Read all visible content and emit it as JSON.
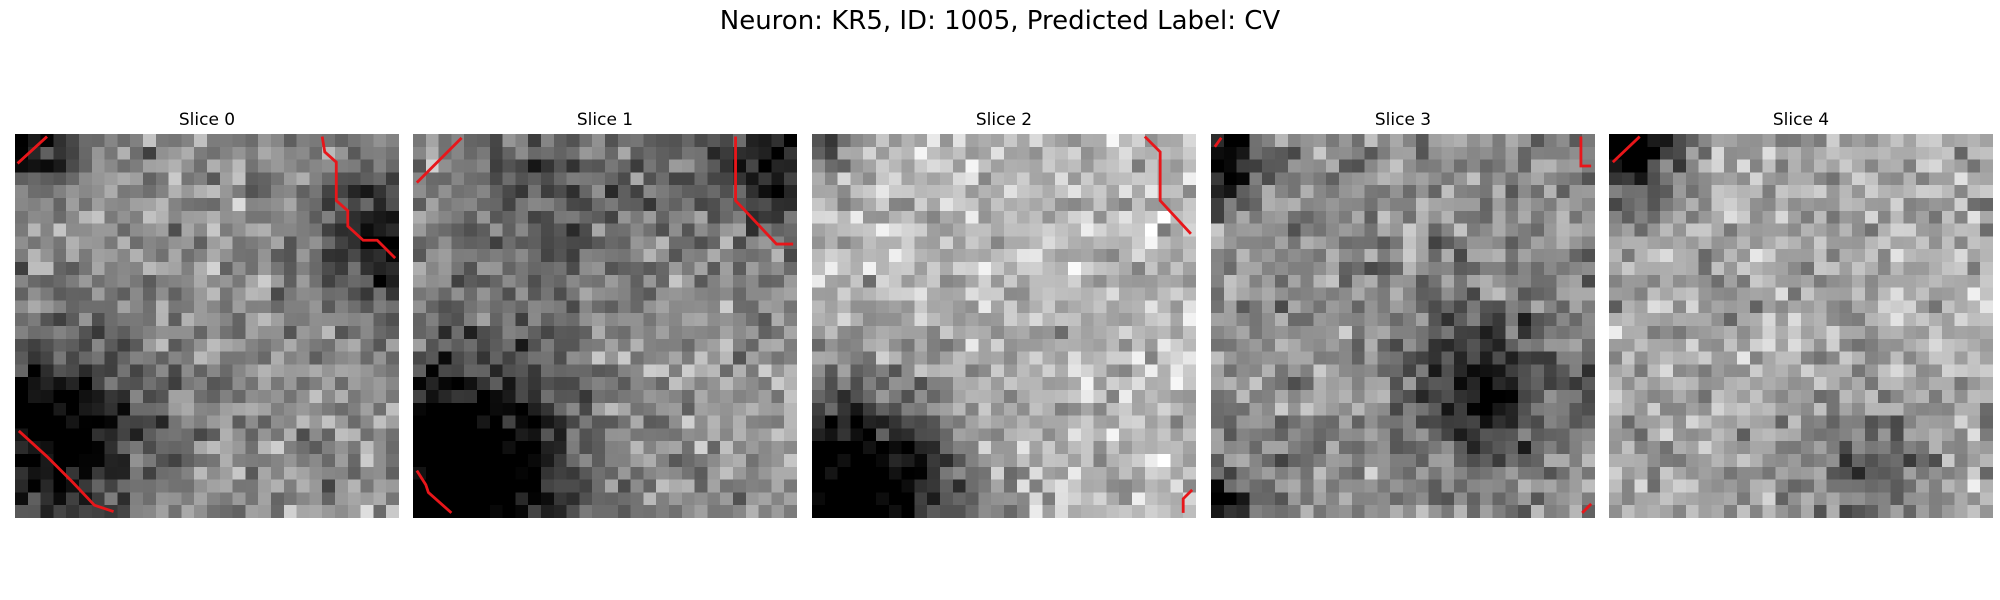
{
  "figure": {
    "title": "Neuron: KR5, ID: 1005, Predicted Label: CV"
  },
  "panels": [
    {
      "label": "Slice 0",
      "mean": 0.55,
      "seed": 11,
      "dark": [
        [
          0.1,
          0.78,
          0.16,
          0.7
        ],
        [
          0.97,
          0.27,
          0.12,
          0.5
        ],
        [
          0.02,
          0.02,
          0.1,
          0.5
        ]
      ]
    },
    {
      "label": "Slice 1",
      "mean": 0.58,
      "seed": 23,
      "dark": [
        [
          0.12,
          0.88,
          0.2,
          0.85
        ],
        [
          0.95,
          0.05,
          0.14,
          0.5
        ],
        [
          0.35,
          0.2,
          0.2,
          0.25
        ]
      ]
    },
    {
      "label": "Slice 2",
      "mean": 0.72,
      "seed": 37,
      "dark": [
        [
          0.1,
          0.95,
          0.2,
          0.9
        ],
        [
          0.0,
          0.0,
          0.1,
          0.3
        ]
      ]
    },
    {
      "label": "Slice 3",
      "mean": 0.55,
      "seed": 41,
      "dark": [
        [
          0.72,
          0.66,
          0.14,
          0.45
        ],
        [
          0.02,
          0.06,
          0.08,
          0.6
        ],
        [
          0.02,
          0.98,
          0.06,
          0.6
        ]
      ]
    },
    {
      "label": "Slice 4",
      "mean": 0.66,
      "seed": 53,
      "dark": [
        [
          0.05,
          0.03,
          0.1,
          0.7
        ],
        [
          0.7,
          0.87,
          0.12,
          0.3
        ]
      ]
    }
  ],
  "outline_color": "#e8161a"
}
